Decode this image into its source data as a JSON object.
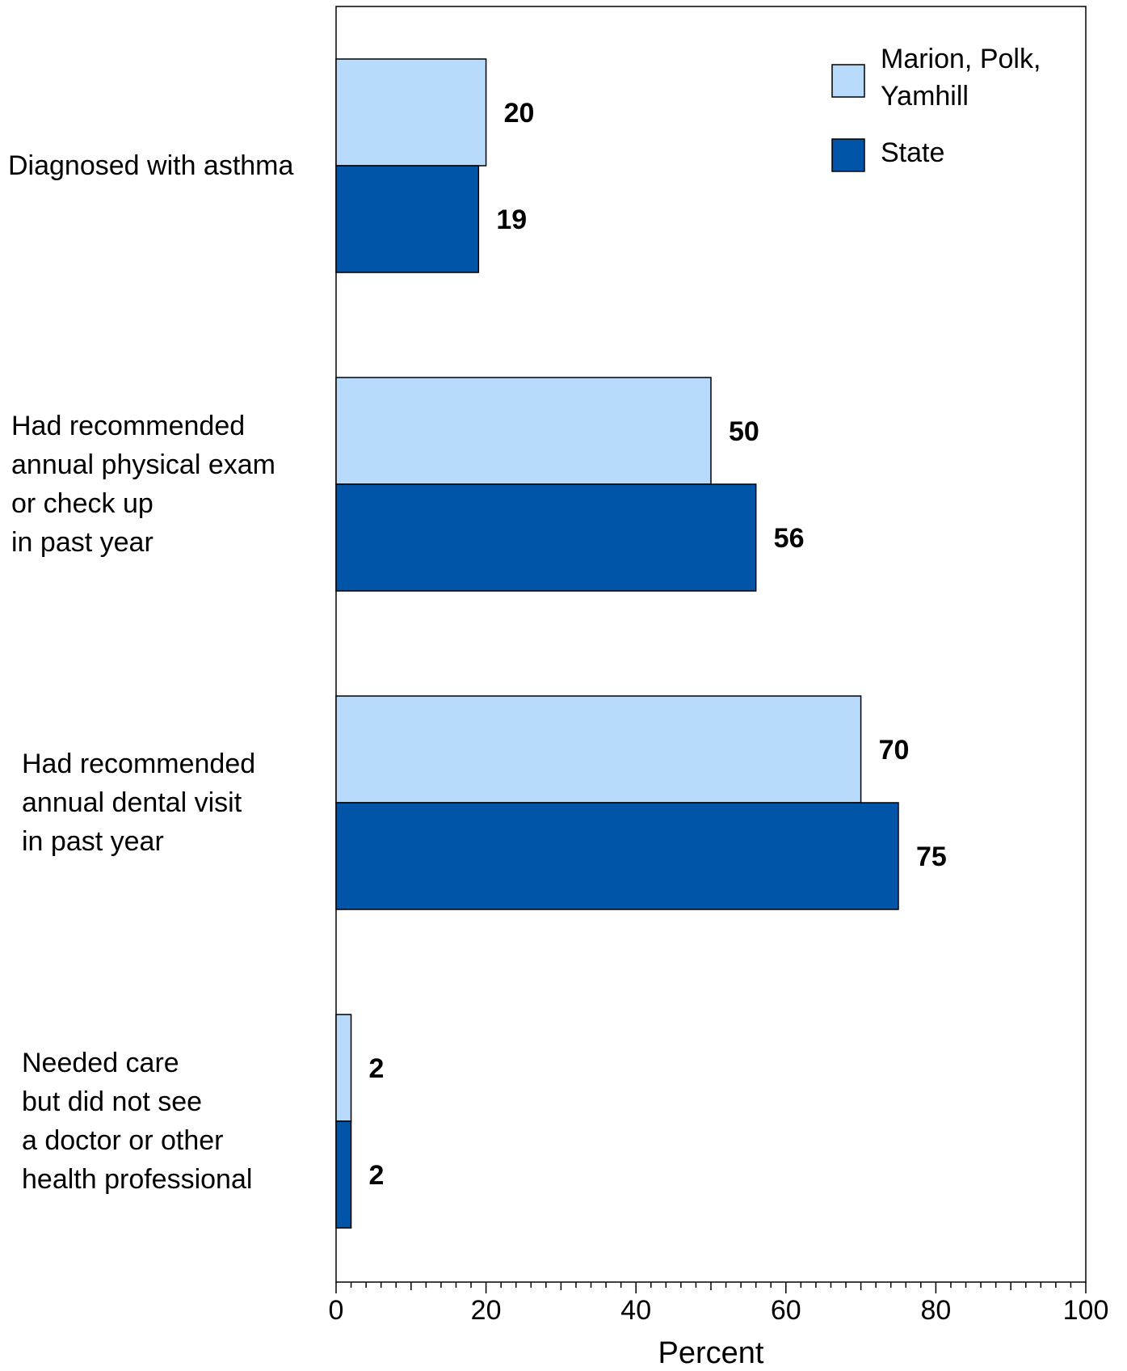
{
  "chart_data": {
    "type": "bar",
    "orientation": "horizontal",
    "categories": [
      [
        "Diagnosed with asthma"
      ],
      [
        "Had recommended",
        "annual physical exam",
        "or check up",
        "in past year"
      ],
      [
        "Had recommended",
        "annual dental visit",
        "in past year"
      ],
      [
        "Needed care",
        "but did not see",
        "a doctor or other",
        "health professional"
      ]
    ],
    "series": [
      {
        "name": "Marion, Polk, Yamhill",
        "legend_lines": [
          "Marion, Polk,",
          "Yamhill"
        ],
        "color": "#b8dbfb",
        "values": [
          20,
          50,
          70,
          2
        ]
      },
      {
        "name": "State",
        "legend_lines": [
          "State"
        ],
        "color": "#0055a8",
        "values": [
          19,
          56,
          75,
          2
        ]
      }
    ],
    "xlabel": "Percent",
    "xlim": [
      0,
      100
    ],
    "xticks": [
      0,
      20,
      40,
      60,
      80,
      100
    ],
    "legend_position": "top-right",
    "grid": false
  }
}
